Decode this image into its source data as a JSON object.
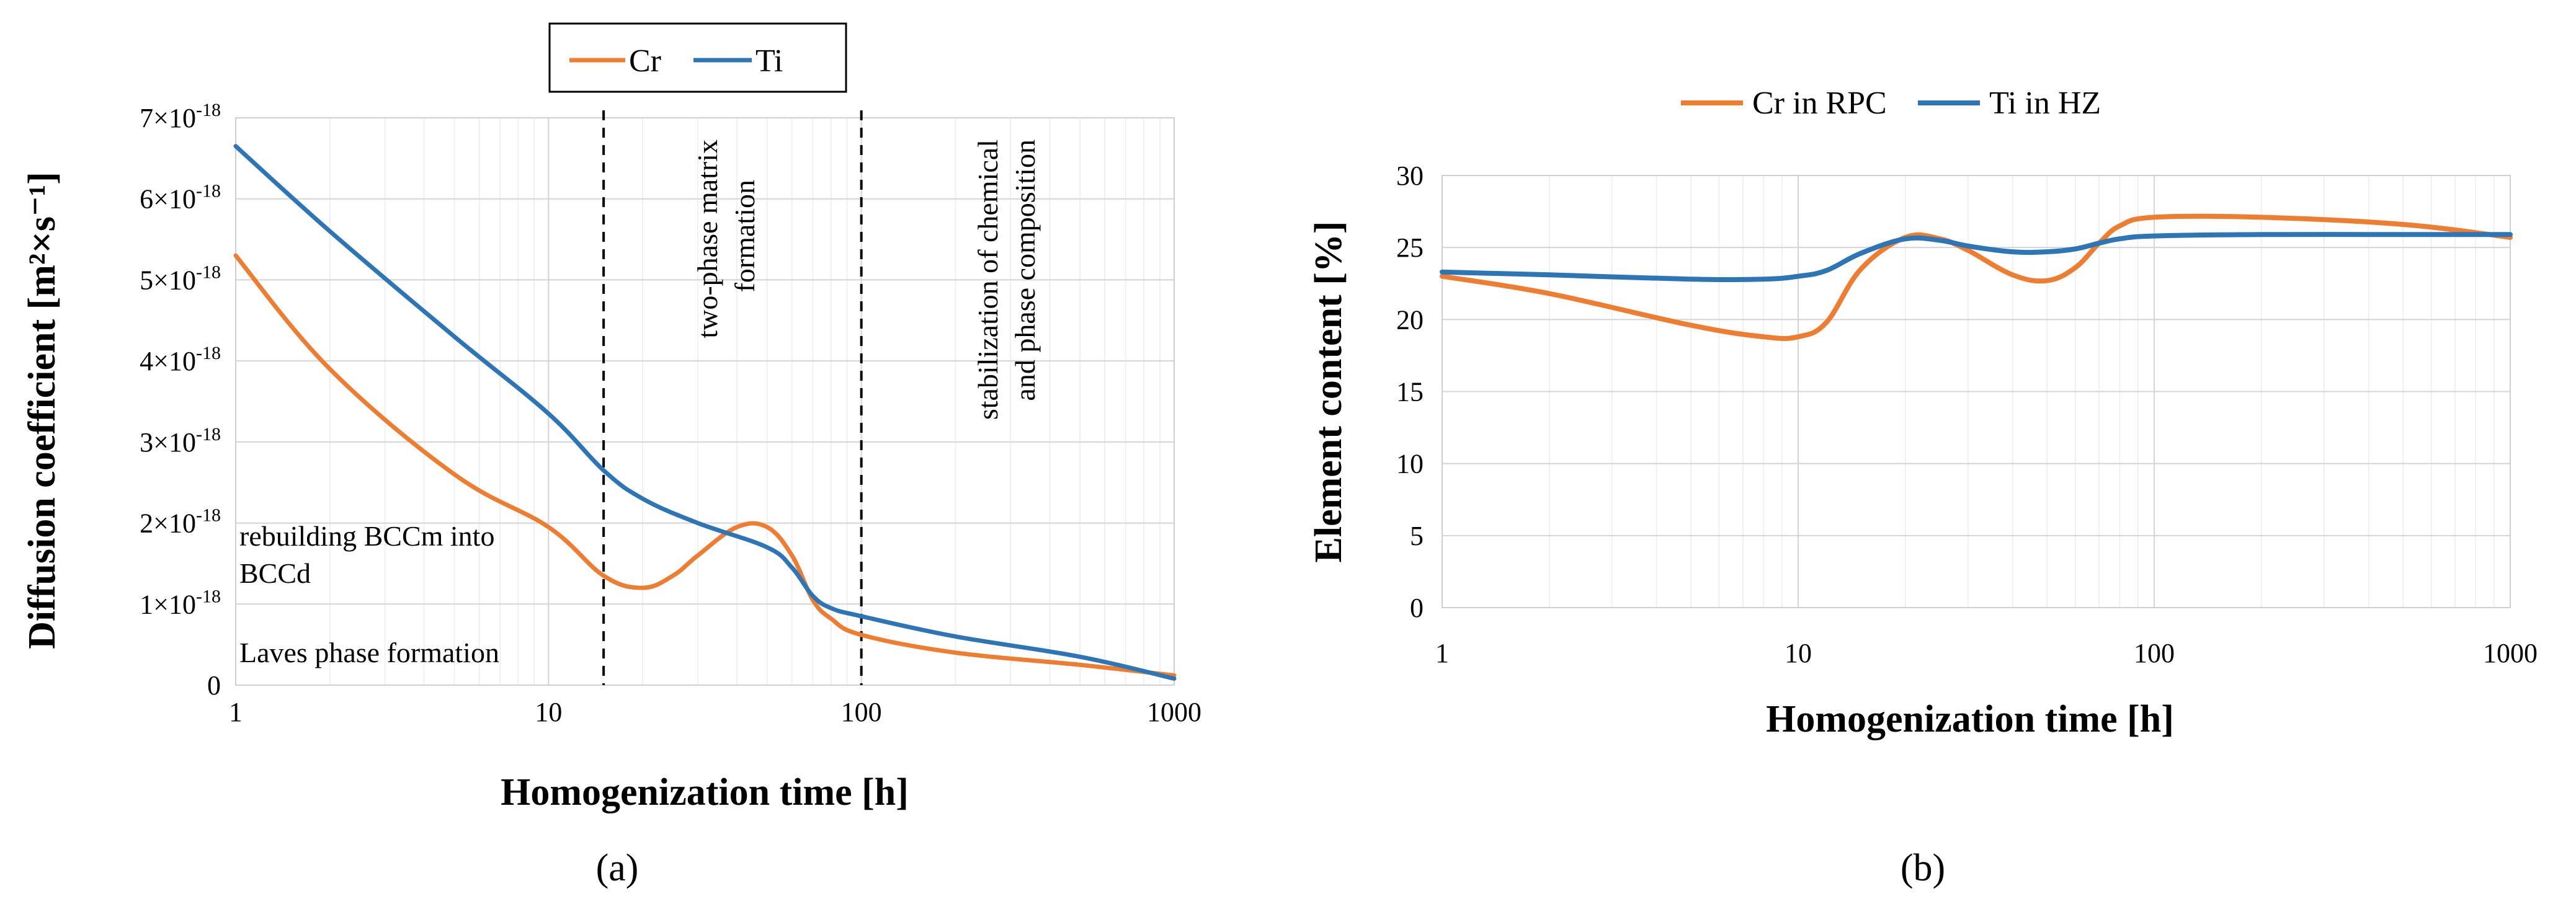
{
  "chart_data": [
    {
      "type": "line",
      "panel_label": "(a)",
      "xlabel": "Homogenization time [h]",
      "ylabel": "Diffusion coefficient [m²×s⁻¹]",
      "xscale": "log",
      "xlim": [
        1,
        1000
      ],
      "ylim": [
        0,
        7e-18
      ],
      "x_ticks": [
        "1",
        "10",
        "100",
        "1000"
      ],
      "y_ticks": [
        {
          "mant": "0",
          "exp": ""
        },
        {
          "mant": "1×10",
          "exp": "-18"
        },
        {
          "mant": "2×10",
          "exp": "-18"
        },
        {
          "mant": "3×10",
          "exp": "-18"
        },
        {
          "mant": "4×10",
          "exp": "-18"
        },
        {
          "mant": "5×10",
          "exp": "-18"
        },
        {
          "mant": "6×10",
          "exp": "-18"
        },
        {
          "mant": "7×10",
          "exp": "-18"
        }
      ],
      "legend": {
        "position": "top-center",
        "entries": [
          "Cr",
          "Ti"
        ]
      },
      "series": [
        {
          "name": "Cr",
          "color": "#ED7D31",
          "x": [
            1,
            2,
            5,
            10,
            15,
            20,
            25,
            30,
            40,
            50,
            60,
            70,
            80,
            100,
            200,
            500,
            1000
          ],
          "y": [
            5.3e-18,
            3.9e-18,
            2.6e-18,
            1.95e-18,
            1.35e-18,
            1.2e-18,
            1.35e-18,
            1.6e-18,
            1.95e-18,
            1.95e-18,
            1.6e-18,
            1.05e-18,
            8.2e-19,
            6.2e-19,
            4e-19,
            2.5e-19,
            1.2e-19
          ]
        },
        {
          "name": "Ti",
          "color": "#2E75B6",
          "x": [
            1,
            2,
            5,
            10,
            15,
            20,
            30,
            50,
            60,
            70,
            80,
            100,
            200,
            500,
            1000
          ],
          "y": [
            6.65e-18,
            5.6e-18,
            4.3e-18,
            3.35e-18,
            2.65e-18,
            2.3e-18,
            2e-18,
            1.7e-18,
            1.45e-18,
            1.1e-18,
            9.5e-19,
            8.5e-19,
            6e-19,
            3.5e-19,
            8e-20
          ]
        }
      ],
      "vlines": [
        15,
        100
      ],
      "annotations": {
        "rebuilding_line1": "rebuilding BCCm into",
        "rebuilding_line2": "BCCd",
        "laves": "Laves phase formation",
        "two_phase_line1": "two-phase matrix",
        "two_phase_line2": "formation",
        "stabilization_line1": "stabilization of chemical",
        "stabilization_line2": "and phase composition"
      }
    },
    {
      "type": "line",
      "panel_label": "(b)",
      "xlabel": "Homogenization time [h]",
      "ylabel": "Element content [%]",
      "xscale": "log",
      "xlim": [
        1,
        1000
      ],
      "ylim": [
        0,
        30
      ],
      "x_ticks": [
        "1",
        "10",
        "100",
        "1000"
      ],
      "y_ticks": [
        "0",
        "5",
        "10",
        "15",
        "20",
        "25",
        "30"
      ],
      "legend": {
        "position": "top-center",
        "entries": [
          "Cr in RPC",
          "Ti in HZ"
        ]
      },
      "series": [
        {
          "name": "Cr in RPC",
          "color": "#ED7D31",
          "x": [
            1,
            2,
            5,
            8,
            10,
            12,
            15,
            20,
            25,
            30,
            40,
            50,
            60,
            70,
            80,
            100,
            200,
            500,
            1000
          ],
          "y": [
            23,
            21.8,
            19.6,
            18.8,
            18.8,
            19.8,
            23.5,
            25.7,
            25.6,
            24.8,
            23.1,
            22.7,
            23.6,
            25.3,
            26.5,
            27.1,
            27.1,
            26.6,
            25.7
          ]
        },
        {
          "name": "Ti in HZ",
          "color": "#2E75B6",
          "x": [
            1,
            2,
            5,
            8,
            10,
            12,
            15,
            20,
            25,
            30,
            40,
            50,
            60,
            70,
            80,
            100,
            200,
            500,
            1000
          ],
          "y": [
            23.3,
            23.1,
            22.8,
            22.8,
            23,
            23.4,
            24.6,
            25.6,
            25.5,
            25.1,
            24.7,
            24.7,
            24.9,
            25.3,
            25.6,
            25.8,
            25.9,
            25.9,
            25.9
          ]
        }
      ]
    }
  ]
}
